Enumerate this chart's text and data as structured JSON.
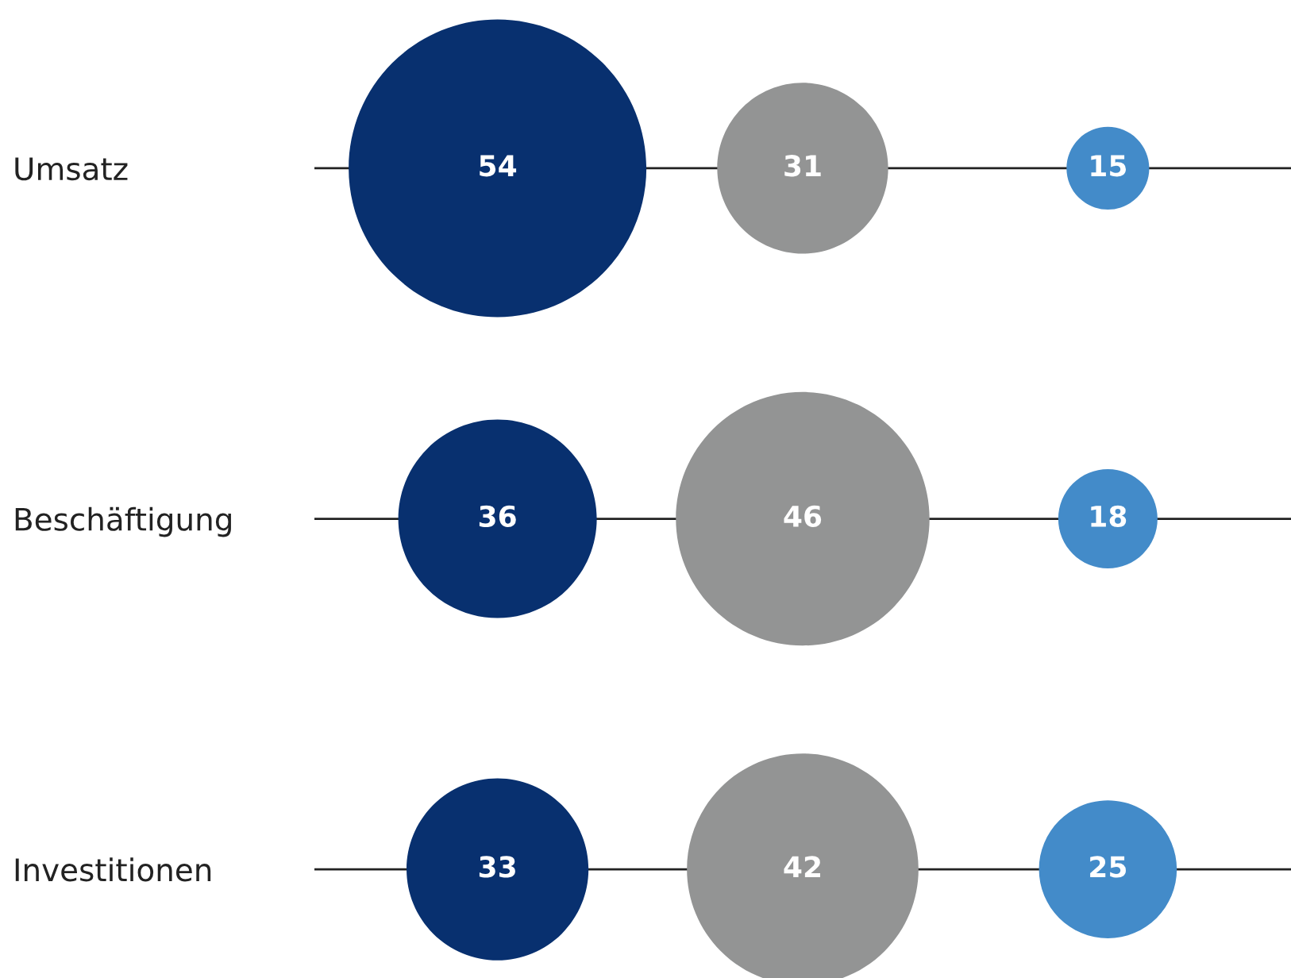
{
  "chart_data": {
    "type": "other",
    "categories": [
      "Umsatz",
      "Beschäftigung",
      "Investitionen"
    ],
    "series": [
      {
        "color": "#08306f",
        "values": [
          54,
          36,
          33
        ]
      },
      {
        "color": "#939494",
        "values": [
          31,
          46,
          42
        ]
      },
      {
        "color": "#438bc9",
        "values": [
          15,
          18,
          25
        ]
      }
    ],
    "data_labels": true
  }
}
